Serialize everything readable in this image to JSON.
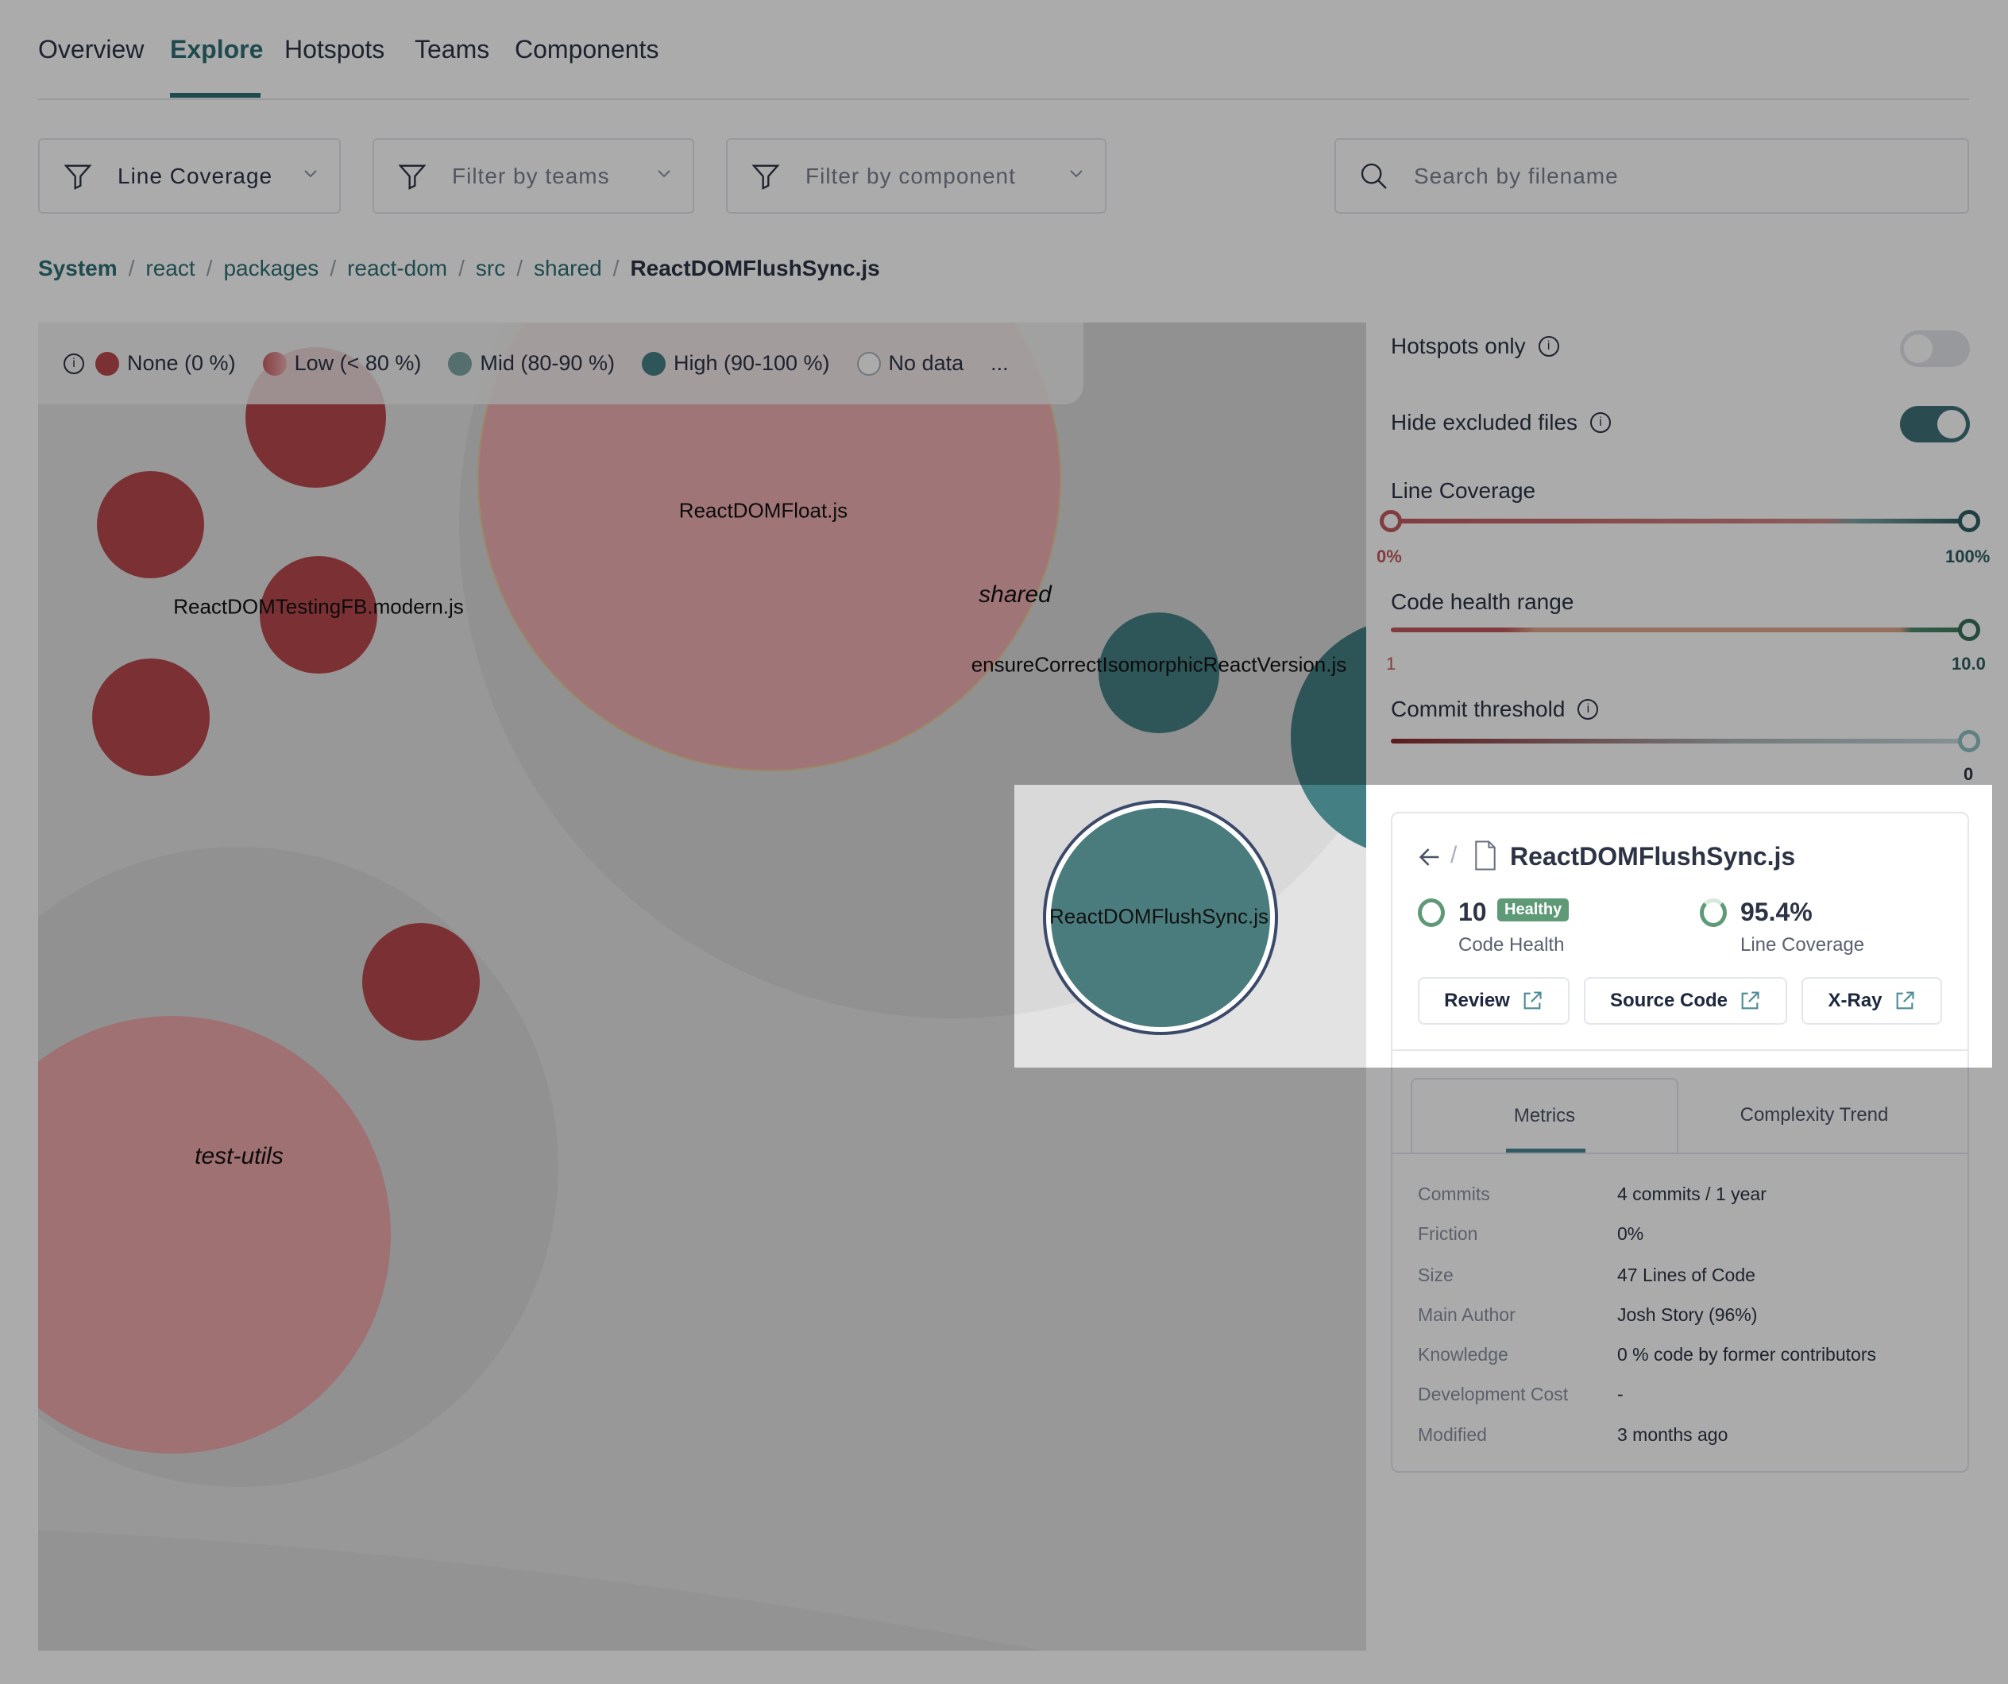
{
  "nav": {
    "tabs": [
      {
        "label": "Overview",
        "active": false
      },
      {
        "label": "Explore",
        "active": true
      },
      {
        "label": "Hotspots",
        "active": false
      },
      {
        "label": "Teams",
        "active": false
      },
      {
        "label": "Components",
        "active": false
      }
    ]
  },
  "filters": {
    "metric": "Line Coverage",
    "teams_placeholder": "Filter by teams",
    "component_placeholder": "Filter by component",
    "search_placeholder": "Search by filename"
  },
  "breadcrumb": [
    "System",
    "react",
    "packages",
    "react-dom",
    "src",
    "shared",
    "ReactDOMFlushSync.js"
  ],
  "legend": {
    "items": [
      {
        "label": "None (0 %)",
        "color": "#b84a4e"
      },
      {
        "label": "Low (< 80 %)",
        "color": "#d97b80"
      },
      {
        "label": "Mid (80-90 %)",
        "color": "#7fa5a5"
      },
      {
        "label": "High (90-100 %)",
        "color": "#457f82"
      },
      {
        "label": "No data",
        "color": "#ffffff"
      }
    ],
    "more": "..."
  },
  "map": {
    "labels": {
      "float": "ReactDOMFloat.js",
      "testing": "ReactDOMTestingFB.modern.js",
      "shared": "shared",
      "ensure": "ensureCorrectIsomorphicReactVersion.js",
      "flush": "ReactDOMFlushSync.js",
      "test_utils": "test-utils"
    }
  },
  "controls": {
    "hotspots_only": {
      "label": "Hotspots only",
      "on": false
    },
    "hide_excluded": {
      "label": "Hide excluded files",
      "on": true
    },
    "line_coverage": {
      "label": "Line Coverage",
      "min": "0%",
      "max": "100%"
    },
    "code_health": {
      "label": "Code health range",
      "min": "1",
      "max": "10.0"
    },
    "commit_threshold": {
      "label": "Commit threshold",
      "value": "0"
    }
  },
  "detail": {
    "filename": "ReactDOMFlushSync.js",
    "code_health": {
      "value": "10",
      "badge": "Healthy",
      "label": "Code Health"
    },
    "line_coverage": {
      "value": "95.4%",
      "label": "Line Coverage"
    },
    "buttons": {
      "review": "Review",
      "source": "Source Code",
      "xray": "X-Ray"
    },
    "tabs": {
      "metrics": "Metrics",
      "trend": "Complexity Trend"
    },
    "metrics": [
      {
        "k": "Commits",
        "v": "4 commits / 1 year"
      },
      {
        "k": "Friction",
        "v": "0%"
      },
      {
        "k": "Size",
        "v": "47 Lines of Code"
      },
      {
        "k": "Main Author",
        "v": "Josh Story (96%)"
      },
      {
        "k": "Knowledge",
        "v": "0 % code by former contributors"
      },
      {
        "k": "Development Cost",
        "v": "-"
      },
      {
        "k": "Modified",
        "v": "3 months ago"
      }
    ]
  }
}
